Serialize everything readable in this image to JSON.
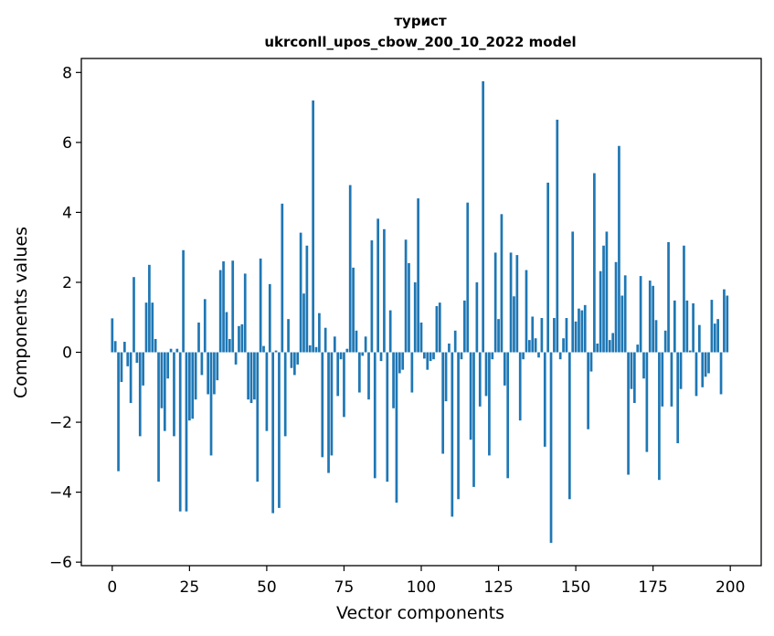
{
  "chart_data": {
    "type": "bar",
    "title": "турист",
    "subtitle": "ukrconll_upos_cbow_200_10_2022 model",
    "xlabel": "Vector components",
    "ylabel": "Components values",
    "xlim": [
      -10,
      210
    ],
    "ylim": [
      -6.1,
      8.4
    ],
    "x_ticks": [
      0,
      25,
      50,
      75,
      100,
      125,
      150,
      175,
      200
    ],
    "x_tick_labels": [
      "0",
      "25",
      "50",
      "75",
      "100",
      "125",
      "150",
      "175",
      "200"
    ],
    "y_ticks": [
      -6,
      -4,
      -2,
      0,
      2,
      4,
      6,
      8
    ],
    "y_tick_labels": [
      "−6",
      "−4",
      "−2",
      "0",
      "2",
      "4",
      "6",
      "8"
    ],
    "bar_color": "#1f77b4",
    "grid": false,
    "values": [
      0.97,
      0.32,
      -3.4,
      -0.85,
      0.3,
      -0.4,
      -1.45,
      2.15,
      -0.3,
      -2.4,
      -0.95,
      1.42,
      2.5,
      1.42,
      0.38,
      -3.7,
      -1.6,
      -2.25,
      -0.75,
      0.1,
      -2.4,
      0.1,
      -4.55,
      2.92,
      -4.55,
      -1.95,
      -1.9,
      -1.35,
      0.85,
      -0.65,
      1.52,
      -1.2,
      -2.95,
      -1.2,
      -0.8,
      2.35,
      2.6,
      1.15,
      0.38,
      2.62,
      -0.35,
      0.75,
      0.8,
      2.25,
      -1.35,
      -1.45,
      -1.35,
      -3.7,
      2.68,
      0.18,
      -2.25,
      1.95,
      -4.6,
      0.05,
      -4.45,
      4.25,
      -2.4,
      0.95,
      -0.45,
      -0.65,
      -0.35,
      3.42,
      1.68,
      3.05,
      0.2,
      7.2,
      0.15,
      1.12,
      -3.0,
      0.7,
      -3.45,
      -2.95,
      0.45,
      -1.25,
      -0.2,
      -1.85,
      0.1,
      4.78,
      2.42,
      0.62,
      -1.15,
      -0.1,
      0.45,
      -1.35,
      3.2,
      -3.6,
      3.82,
      -0.25,
      3.52,
      -3.7,
      1.2,
      -1.6,
      -4.3,
      -0.6,
      -0.5,
      3.22,
      2.55,
      -1.15,
      2.0,
      4.4,
      0.85,
      -0.18,
      -0.5,
      -0.25,
      -0.2,
      1.32,
      1.42,
      -2.9,
      -1.4,
      0.25,
      -4.7,
      0.62,
      -4.2,
      -0.2,
      1.48,
      4.28,
      -2.5,
      -3.85,
      2.0,
      -1.55,
      7.75,
      -1.25,
      -2.95,
      -0.2,
      2.85,
      0.95,
      3.95,
      -0.95,
      -3.6,
      2.85,
      1.6,
      2.78,
      -1.95,
      -0.2,
      2.35,
      0.35,
      1.02,
      0.4,
      -0.15,
      0.98,
      -2.7,
      4.85,
      -5.45,
      0.98,
      6.65,
      -0.2,
      0.4,
      0.98,
      -4.2,
      3.45,
      0.88,
      1.25,
      1.2,
      1.35,
      -2.2,
      -0.55,
      5.12,
      0.25,
      2.32,
      3.05,
      3.45,
      0.35,
      0.55,
      2.58,
      5.9,
      1.62,
      2.2,
      -3.5,
      -1.05,
      -1.45,
      0.22,
      2.18,
      -0.75,
      -2.85,
      2.05,
      1.9,
      0.92,
      -3.65,
      -1.55,
      0.62,
      3.15,
      -1.55,
      1.48,
      -2.6,
      -1.05,
      3.05,
      1.48,
      0.05,
      1.4,
      -1.25,
      0.78,
      -1.0,
      -0.7,
      -0.6,
      1.5,
      0.82,
      0.95,
      -1.2,
      1.8,
      1.62
    ]
  }
}
